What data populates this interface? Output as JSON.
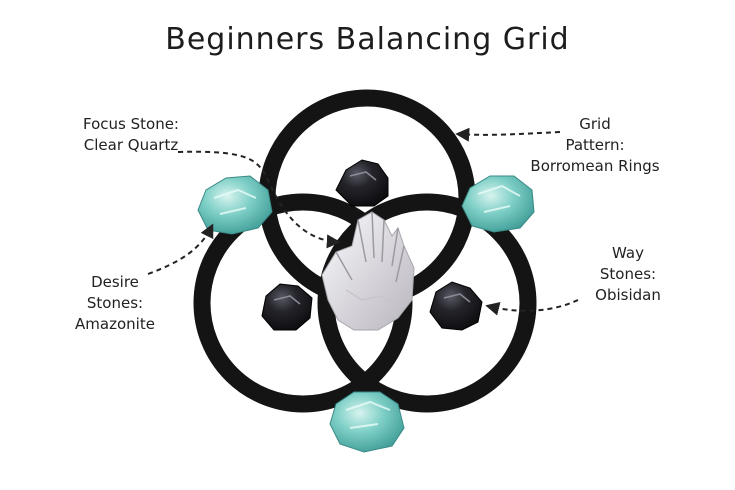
{
  "title": "Beginners Balancing Grid",
  "labels": {
    "focus": {
      "line1": "Focus Stone:",
      "line2": "Clear Quartz"
    },
    "grid": {
      "line1": "Grid",
      "line2": "Pattern:",
      "line3": "Borromean Rings"
    },
    "desire": {
      "line1": "Desire",
      "line2": "Stones:",
      "line3": "Amazonite"
    },
    "way": {
      "line1": "Way",
      "line2": "Stones:",
      "line3": "Obisidan"
    }
  },
  "colors": {
    "ring": "#141414",
    "amazonite": "#6cc9c0",
    "amazonite_light": "#bfeae4",
    "obsidian": "#1b1b1f",
    "quartz": "#e4e2e6",
    "arrow": "#222222"
  }
}
